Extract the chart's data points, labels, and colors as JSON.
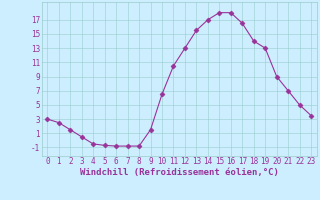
{
  "x": [
    0,
    1,
    2,
    3,
    4,
    5,
    6,
    7,
    8,
    9,
    10,
    11,
    12,
    13,
    14,
    15,
    16,
    17,
    18,
    19,
    20,
    21,
    22,
    23
  ],
  "y": [
    3,
    2.5,
    1.5,
    0.5,
    -0.5,
    -0.7,
    -0.8,
    -0.8,
    -0.8,
    1.5,
    6.5,
    10.5,
    13,
    15.5,
    17,
    18,
    18,
    16.5,
    14,
    13,
    9,
    7,
    5,
    3.5
  ],
  "line_color": "#993399",
  "marker": "D",
  "marker_size": 2.5,
  "bg_color": "#cceeff",
  "grid_color": "#99cccc",
  "xlabel": "Windchill (Refroidissement éolien,°C)",
  "xlabel_color": "#993399",
  "ylabel_ticks": [
    -1,
    1,
    3,
    5,
    7,
    9,
    11,
    13,
    15,
    17
  ],
  "xtick_labels": [
    "0",
    "1",
    "2",
    "3",
    "4",
    "5",
    "6",
    "7",
    "8",
    "9",
    "10",
    "11",
    "12",
    "13",
    "14",
    "15",
    "16",
    "17",
    "18",
    "19",
    "20",
    "21",
    "22",
    "23"
  ],
  "ylim": [
    -2.2,
    19.5
  ],
  "xlim": [
    -0.5,
    23.5
  ],
  "tick_color": "#993399",
  "tick_fontsize": 5.5,
  "xlabel_fontsize": 6.5
}
